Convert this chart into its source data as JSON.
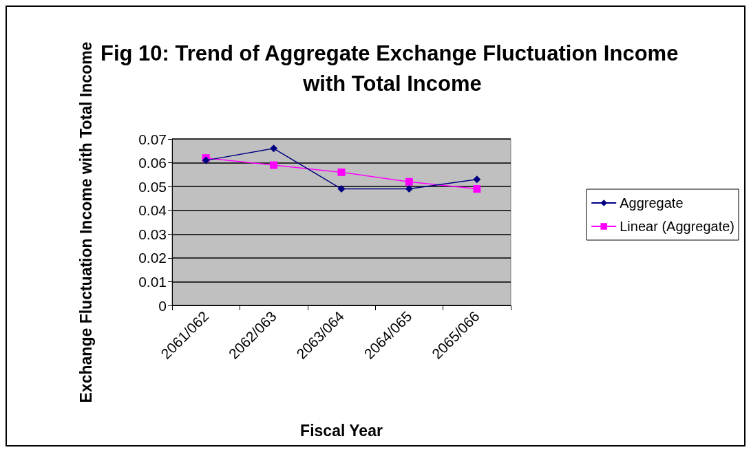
{
  "chart_data": {
    "type": "line",
    "title": "Fig 10: Trend of Aggregate Exchange Fluctuation Income with Total Income",
    "xlabel": "Fiscal Year",
    "ylabel": "Exchange Fluctuation Income with Total Income",
    "categories": [
      "2061/062",
      "2062/063",
      "2063/064",
      "2064/065",
      "2065/066"
    ],
    "series": [
      {
        "name": "Aggregate",
        "color": "#000080",
        "marker": "diamond",
        "values": [
          0.061,
          0.066,
          0.049,
          0.049,
          0.053
        ]
      },
      {
        "name": "Linear (Aggregate)",
        "color": "#ff00ff",
        "marker": "square",
        "values": [
          0.062,
          0.059,
          0.056,
          0.052,
          0.049
        ]
      }
    ],
    "ylim": [
      0,
      0.07
    ],
    "yticks": [
      0,
      0.01,
      0.02,
      0.03,
      0.04,
      0.05,
      0.06,
      0.07
    ],
    "grid": "y",
    "legend": "right"
  }
}
